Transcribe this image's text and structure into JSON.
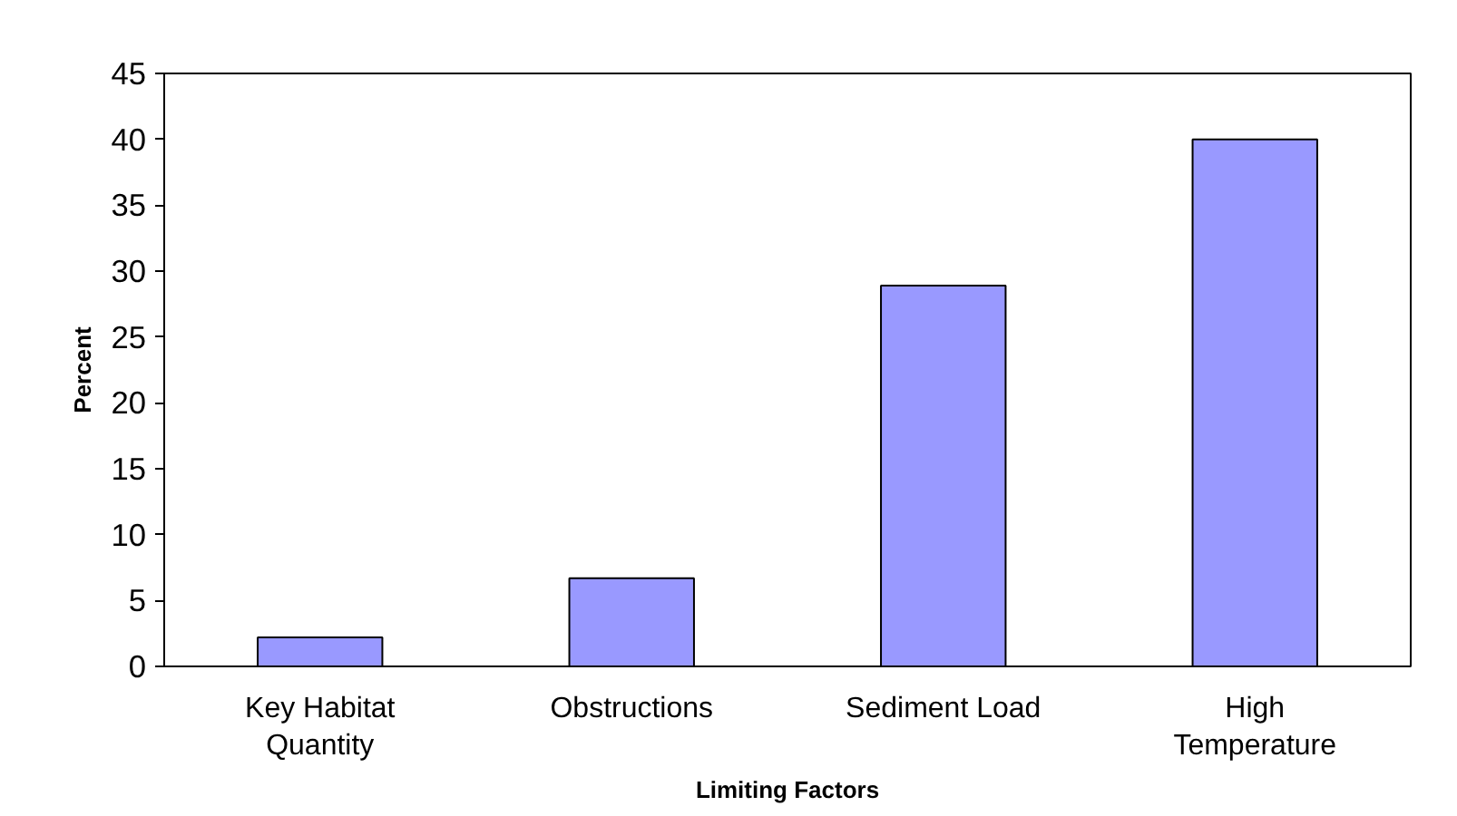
{
  "chart_data": {
    "type": "bar",
    "xlabel": "Limiting Factors",
    "ylabel": "Percent",
    "categories": [
      "Key Habitat\nQuantity",
      "Obstructions",
      "Sediment Load",
      "High\nTemperature"
    ],
    "values": [
      2.2,
      6.7,
      28.9,
      40
    ],
    "color": "#9999ff",
    "ylim": [
      0,
      45
    ],
    "yticks": [
      0,
      5,
      10,
      15,
      20,
      25,
      30,
      35,
      40,
      45
    ],
    "grid": false
  }
}
